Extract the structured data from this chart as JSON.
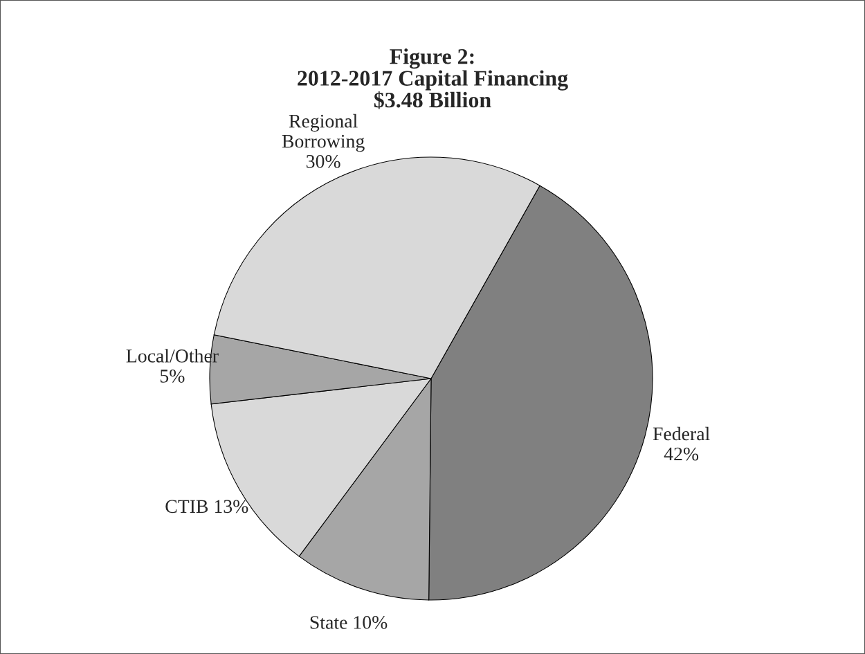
{
  "chart_data": {
    "type": "pie",
    "title": "Figure 2:\n2012-2017 Capital Financing\n$3.48 Billion",
    "categories": [
      "Federal",
      "State",
      "CTIB",
      "Local/Other",
      "Regional\nBorrowing"
    ],
    "values": [
      42,
      10,
      13,
      5,
      30
    ],
    "value_labels": [
      "42%",
      "10%",
      "13%",
      "5%",
      "30%"
    ],
    "colors": [
      "#808080",
      "#a6a6a6",
      "#d9d9d9",
      "#a6a6a6",
      "#d9d9d9"
    ],
    "legend": false
  }
}
